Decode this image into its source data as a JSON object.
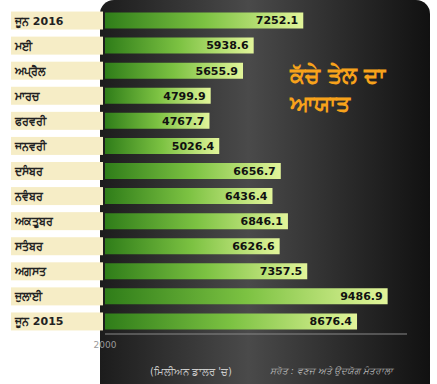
{
  "chart_data": {
    "type": "bar",
    "title": "ਕੱਚੇ ਤੇਲ ਦਾ ਆਯਾਤ",
    "orientation": "horizontal",
    "x_label": "(ਮਿਲੀਅਨ ਡਾਲਰ 'ਚ)",
    "annotations": [
      "ਸਰੋਤ : ਵਣਜ ਅਤੇ ਉਦਯੋਗ ਮੰਤਰਾਲਾ"
    ],
    "categories": [
      "ਜੂਨ 2016",
      "ਮਈ",
      "ਅਪ੍ਰੈਲ",
      "ਮਾਰਚ",
      "ਫਰਵਰੀ",
      "ਜਨਵਰੀ",
      "ਦਸੰਬਰ",
      "ਨਵੰਬਰ",
      "ਅਕਤੂਬਰ",
      "ਸਤੰਬਰ",
      "ਅਗਸਤ",
      "ਜੁਲਾਈ",
      "ਜੂਨ 2015"
    ],
    "values": [
      7252.1,
      5938.6,
      5655.9,
      4799.9,
      4767.7,
      5026.4,
      6656.7,
      6436.4,
      6846.1,
      6626.6,
      7357.5,
      9486.9,
      8676.4
    ],
    "color": "#7cc242",
    "xlim": [
      2000,
      10000
    ],
    "xticks": [
      2000
    ],
    "data_labels": true,
    "grid": false
  }
}
